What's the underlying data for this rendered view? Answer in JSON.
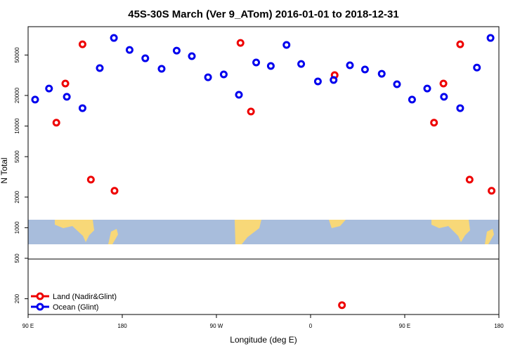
{
  "chart_data": {
    "type": "scatter",
    "title": "45S-30S March (Ver 9_ATom)   2016-01-01 to 2018-12-31",
    "x_label": "Longitude (deg E)",
    "y_label": "N Total",
    "log_y": true,
    "legend": "bottom-left",
    "xlim": [
      90,
      540
    ],
    "ylim": [
      140,
      95000
    ],
    "xticks": [
      {
        "value": 90,
        "label": "90 E"
      },
      {
        "value": 180,
        "label": "180"
      },
      {
        "value": 270,
        "label": "90 W"
      },
      {
        "value": 360,
        "label": "0"
      },
      {
        "value": 450,
        "label": "90 E"
      },
      {
        "value": 540,
        "label": "180"
      }
    ],
    "yticks": [
      200,
      500,
      1000,
      2000,
      5000,
      10000,
      20000,
      50000
    ],
    "series": [
      {
        "name": "Land (Nadir&Glint)",
        "color": "#ee0000",
        "x": [
          117,
          125.6,
          142,
          150,
          172.6,
          293,
          303,
          383,
          390,
          478,
          487,
          503,
          512,
          533
        ],
        "values": [
          10800,
          26200,
          63700,
          2970,
          2310,
          65800,
          13900,
          31700,
          173,
          10800,
          26200,
          63700,
          2970,
          2310
        ]
      },
      {
        "name": "Ocean (Glint)",
        "color": "#0000ee",
        "x": [
          96.7,
          110,
          127,
          142,
          158.5,
          172,
          187,
          202,
          217.6,
          232,
          246.5,
          262,
          277,
          291.5,
          308,
          322,
          337,
          351,
          367,
          382,
          397.6,
          412,
          428,
          442.6,
          457,
          471.5,
          487.5,
          503,
          519,
          532
        ],
        "values": [
          18200,
          23400,
          19400,
          15000,
          37200,
          73600,
          56100,
          46400,
          36600,
          55200,
          48700,
          30200,
          32200,
          20300,
          42200,
          39000,
          62800,
          40800,
          27500,
          28400,
          39600,
          36000,
          32700,
          25800,
          18200,
          23400,
          19400,
          15000,
          37600,
          73600
        ]
      }
    ]
  }
}
